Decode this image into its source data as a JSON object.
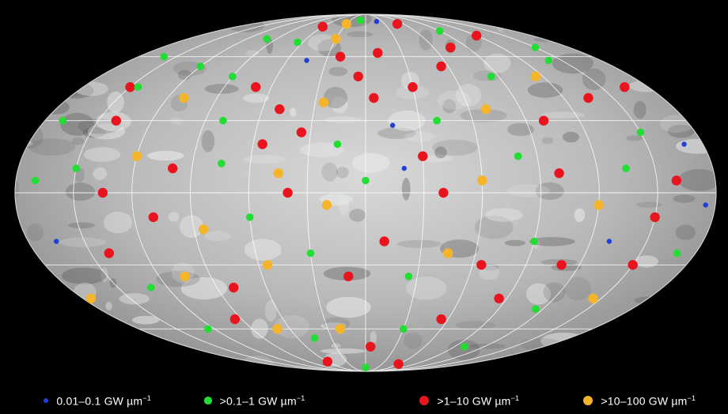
{
  "legend": [
    {
      "label_main": "0.01–0.1 GW µm",
      "label_exp": "−1",
      "color": "#1f3fd6",
      "size": "small"
    },
    {
      "label_main": ">0.1–1 GW µm",
      "label_exp": "−1",
      "color": "#22dd33",
      "size": "medium"
    },
    {
      "label_main": ">1–10 GW µm",
      "label_exp": "−1",
      "color": "#e8141e",
      "size": "large"
    },
    {
      "label_main": ">10–100 GW µm",
      "label_exp": "−1",
      "color": "#f5b52a",
      "size": "large"
    }
  ],
  "map": {
    "projection": "mollweide",
    "graticule": {
      "meridian_spacing_deg": 30,
      "parallel_spacing_deg": 30
    },
    "points": [
      {
        "lon": -150,
        "lat": 45,
        "c": 2
      },
      {
        "lon": -120,
        "lat": 55,
        "c": 1
      },
      {
        "lon": -100,
        "lat": 70,
        "c": 1
      },
      {
        "lon": -60,
        "lat": 78,
        "c": 2
      },
      {
        "lon": -30,
        "lat": 80,
        "c": 3
      },
      {
        "lon": -10,
        "lat": 83,
        "c": 1
      },
      {
        "lon": 20,
        "lat": 82,
        "c": 0
      },
      {
        "lon": 50,
        "lat": 80,
        "c": 2
      },
      {
        "lon": 90,
        "lat": 75,
        "c": 1
      },
      {
        "lon": 120,
        "lat": 72,
        "c": 2
      },
      {
        "lon": 150,
        "lat": 65,
        "c": 1
      },
      {
        "lon": 165,
        "lat": 45,
        "c": 2
      },
      {
        "lon": -170,
        "lat": 30,
        "c": 1
      },
      {
        "lon": -140,
        "lat": 30,
        "c": 2
      },
      {
        "lon": -110,
        "lat": 40,
        "c": 3
      },
      {
        "lon": -90,
        "lat": 50,
        "c": 1
      },
      {
        "lon": -70,
        "lat": 45,
        "c": 2
      },
      {
        "lon": -45,
        "lat": 58,
        "c": 0
      },
      {
        "lon": -20,
        "lat": 60,
        "c": 2
      },
      {
        "lon": -5,
        "lat": 50,
        "c": 2
      },
      {
        "lon": -25,
        "lat": 38,
        "c": 3
      },
      {
        "lon": -50,
        "lat": 35,
        "c": 2
      },
      {
        "lon": -80,
        "lat": 30,
        "c": 1
      },
      {
        "lon": -120,
        "lat": 15,
        "c": 3
      },
      {
        "lon": -150,
        "lat": 10,
        "c": 1
      },
      {
        "lon": -170,
        "lat": 5,
        "c": 1
      },
      {
        "lon": -135,
        "lat": 0,
        "c": 2
      },
      {
        "lon": -100,
        "lat": 10,
        "c": 2
      },
      {
        "lon": -75,
        "lat": 12,
        "c": 1
      },
      {
        "lon": -55,
        "lat": 20,
        "c": 2
      },
      {
        "lon": -35,
        "lat": 25,
        "c": 2
      },
      {
        "lon": -15,
        "lat": 20,
        "c": 1
      },
      {
        "lon": 5,
        "lat": 40,
        "c": 2
      },
      {
        "lon": 15,
        "lat": 28,
        "c": 0
      },
      {
        "lon": 30,
        "lat": 45,
        "c": 2
      },
      {
        "lon": 40,
        "lat": 30,
        "c": 1
      },
      {
        "lon": 55,
        "lat": 55,
        "c": 2
      },
      {
        "lon": 70,
        "lat": 35,
        "c": 3
      },
      {
        "lon": 85,
        "lat": 50,
        "c": 1
      },
      {
        "lon": 100,
        "lat": 30,
        "c": 2
      },
      {
        "lon": 115,
        "lat": 50,
        "c": 3
      },
      {
        "lon": 135,
        "lat": 40,
        "c": 2
      },
      {
        "lon": 150,
        "lat": 25,
        "c": 1
      },
      {
        "lon": 170,
        "lat": 20,
        "c": 0
      },
      {
        "lon": 160,
        "lat": 5,
        "c": 2
      },
      {
        "lon": 135,
        "lat": 10,
        "c": 1
      },
      {
        "lon": 120,
        "lat": -5,
        "c": 3
      },
      {
        "lon": 100,
        "lat": 8,
        "c": 2
      },
      {
        "lon": 80,
        "lat": 15,
        "c": 1
      },
      {
        "lon": 60,
        "lat": 5,
        "c": 3
      },
      {
        "lon": 40,
        "lat": 0,
        "c": 2
      },
      {
        "lon": 20,
        "lat": 10,
        "c": 0
      },
      {
        "lon": 0,
        "lat": 5,
        "c": 1
      },
      {
        "lon": -20,
        "lat": -5,
        "c": 3
      },
      {
        "lon": -40,
        "lat": 0,
        "c": 2
      },
      {
        "lon": -60,
        "lat": -10,
        "c": 1
      },
      {
        "lon": -85,
        "lat": -15,
        "c": 3
      },
      {
        "lon": -110,
        "lat": -10,
        "c": 2
      },
      {
        "lon": -140,
        "lat": -25,
        "c": 2
      },
      {
        "lon": -165,
        "lat": -20,
        "c": 0
      },
      {
        "lon": -130,
        "lat": -40,
        "c": 1
      },
      {
        "lon": -105,
        "lat": -35,
        "c": 3
      },
      {
        "lon": -80,
        "lat": -40,
        "c": 2
      },
      {
        "lon": -55,
        "lat": -30,
        "c": 3
      },
      {
        "lon": -30,
        "lat": -25,
        "c": 1
      },
      {
        "lon": -10,
        "lat": -35,
        "c": 2
      },
      {
        "lon": 10,
        "lat": -20,
        "c": 2
      },
      {
        "lon": 25,
        "lat": -35,
        "c": 1
      },
      {
        "lon": 45,
        "lat": -25,
        "c": 3
      },
      {
        "lon": 65,
        "lat": -30,
        "c": 2
      },
      {
        "lon": 90,
        "lat": -20,
        "c": 1
      },
      {
        "lon": 110,
        "lat": -30,
        "c": 2
      },
      {
        "lon": 130,
        "lat": -20,
        "c": 0
      },
      {
        "lon": 150,
        "lat": -30,
        "c": 2
      },
      {
        "lon": 170,
        "lat": -25,
        "c": 1
      },
      {
        "lon": 145,
        "lat": -45,
        "c": 3
      },
      {
        "lon": 115,
        "lat": -50,
        "c": 1
      },
      {
        "lon": 85,
        "lat": -45,
        "c": 2
      },
      {
        "lon": 55,
        "lat": -55,
        "c": 2
      },
      {
        "lon": 30,
        "lat": -60,
        "c": 1
      },
      {
        "lon": 5,
        "lat": -70,
        "c": 2
      },
      {
        "lon": -20,
        "lat": -60,
        "c": 3
      },
      {
        "lon": -45,
        "lat": -65,
        "c": 1
      },
      {
        "lon": -70,
        "lat": -60,
        "c": 3
      },
      {
        "lon": -95,
        "lat": -55,
        "c": 2
      },
      {
        "lon": -125,
        "lat": -60,
        "c": 1
      },
      {
        "lon": -60,
        "lat": -80,
        "c": 2
      },
      {
        "lon": 0,
        "lat": -85,
        "c": 1
      },
      {
        "lon": 60,
        "lat": -82,
        "c": 2
      },
      {
        "lon": 100,
        "lat": -70,
        "c": 1
      },
      {
        "lon": -160,
        "lat": 60,
        "c": 1
      },
      {
        "lon": 175,
        "lat": -5,
        "c": 0
      },
      {
        "lon": -175,
        "lat": -45,
        "c": 3
      },
      {
        "lon": -30,
        "lat": 70,
        "c": 3
      },
      {
        "lon": 75,
        "lat": 65,
        "c": 2
      },
      {
        "lon": -65,
        "lat": 68,
        "c": 1
      },
      {
        "lon": 10,
        "lat": 62,
        "c": 2
      },
      {
        "lon": 140,
        "lat": 58,
        "c": 1
      },
      {
        "lon": -145,
        "lat": 45,
        "c": 1
      },
      {
        "lon": 30,
        "lat": 15,
        "c": 2
      },
      {
        "lon": -45,
        "lat": 8,
        "c": 3
      },
      {
        "lon": 150,
        "lat": -10,
        "c": 2
      }
    ]
  }
}
